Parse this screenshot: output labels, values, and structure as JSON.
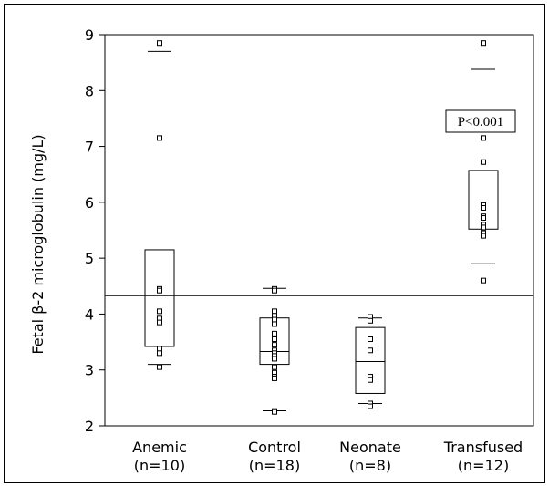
{
  "chart_data": {
    "type": "box",
    "ylabel": "Fetal β-2 microglobulin  (mg/L)",
    "ylim": [
      2,
      9
    ],
    "yticks": [
      "2",
      "3",
      "4",
      "5",
      "6",
      "7",
      "8",
      "9"
    ],
    "reference_line": 4.33,
    "annotation": "P<0.001",
    "groups": [
      {
        "name": "Anemic",
        "n_label": "(n=10)",
        "whisker_low": 3.1,
        "q1": 3.42,
        "median": null,
        "q3": 5.15,
        "whisker_high": 8.7,
        "points": [
          8.85,
          7.15,
          4.45,
          4.42,
          4.05,
          3.92,
          3.85,
          3.38,
          3.3,
          3.05
        ]
      },
      {
        "name": "Control",
        "n_label": "(n=18)",
        "whisker_low": 2.27,
        "q1": 3.1,
        "median": 3.33,
        "q3": 3.93,
        "whisker_high": 4.46,
        "points": [
          4.45,
          4.42,
          4.05,
          3.97,
          3.9,
          3.82,
          3.65,
          3.55,
          3.45,
          3.35,
          3.3,
          3.25,
          3.2,
          3.05,
          2.95,
          2.88,
          2.85,
          2.25
        ]
      },
      {
        "name": "Neonate",
        "n_label": "(n=8)",
        "whisker_low": 2.4,
        "q1": 2.58,
        "median": 3.15,
        "q3": 3.76,
        "whisker_high": 3.93,
        "points": [
          3.95,
          3.88,
          3.55,
          3.35,
          2.88,
          2.82,
          2.4,
          2.35
        ]
      },
      {
        "name": "Transfused",
        "n_label": "(n=12)",
        "whisker_low": 4.9,
        "q1": 5.52,
        "median": null,
        "q3": 6.57,
        "whisker_high": 8.38,
        "points": [
          8.85,
          7.15,
          6.72,
          5.95,
          5.9,
          5.75,
          5.72,
          5.6,
          5.55,
          5.45,
          5.4,
          4.6
        ]
      }
    ]
  }
}
